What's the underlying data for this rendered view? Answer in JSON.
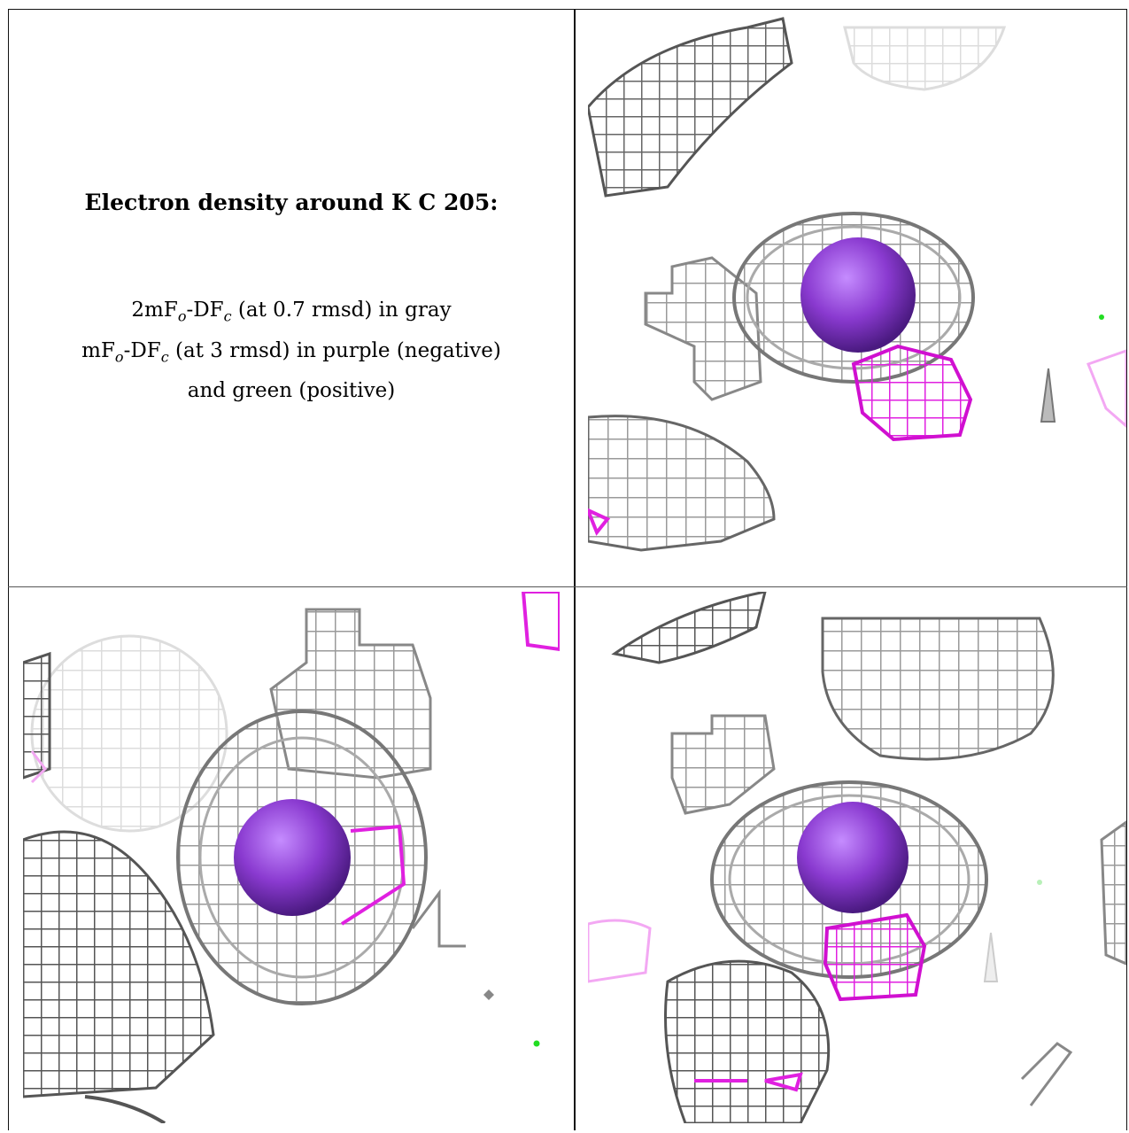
{
  "legend": {
    "title": "Electron density around K C 205:",
    "line1": {
      "a": "2mF",
      "a_sub": "o",
      "b": "-DF",
      "b_sub": "c",
      "rest": " (at 0.7 rmsd) in gray"
    },
    "line2": {
      "a": "mF",
      "a_sub": "o",
      "b": "-DF",
      "b_sub": "c",
      "rest": " (at 3 rmsd) in purple (negative)"
    },
    "line3": "and green (positive)"
  },
  "colors": {
    "mesh_gray": "#9a9a9a",
    "mesh_dark": "#555555",
    "mesh_light": "#d8d8d8",
    "negative_magenta": "#e020e0",
    "atom_purple": "#8a3ad0",
    "positive_green": "#22dd22"
  },
  "views": [
    {
      "label": "view-top-right"
    },
    {
      "label": "view-bottom-left"
    },
    {
      "label": "view-bottom-right"
    }
  ]
}
